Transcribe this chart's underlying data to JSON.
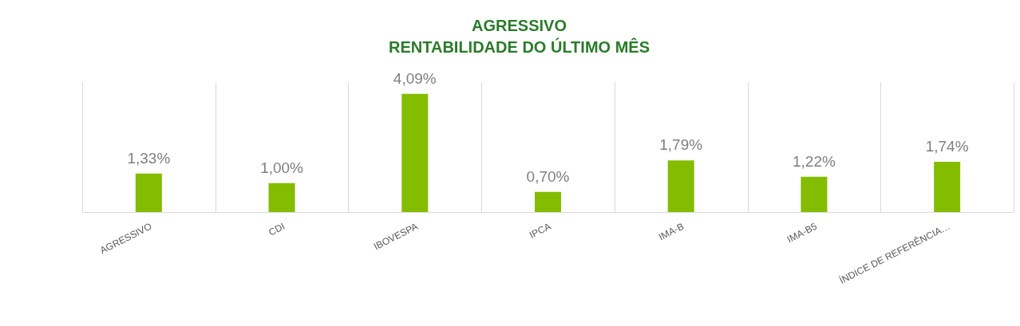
{
  "chart_data": {
    "type": "bar",
    "title": "AGRESSIVO\nRENTABILIDADE DO ÚLTIMO MÊS",
    "categories": [
      "AGRESSIVO",
      "CDI",
      "IBOVESPA",
      "IPCA",
      "IMA-B",
      "IMA-B5",
      "ÍNDICE DE REFERÊNCIA…"
    ],
    "values": [
      1.33,
      1.0,
      4.09,
      0.7,
      1.79,
      1.22,
      1.74
    ],
    "value_labels": [
      "1,33%",
      "1,00%",
      "4,09%",
      "0,70%",
      "1,79%",
      "1,22%",
      "1,74%"
    ],
    "color": "#84bc00",
    "grid": "x",
    "tick_labels": "x"
  }
}
